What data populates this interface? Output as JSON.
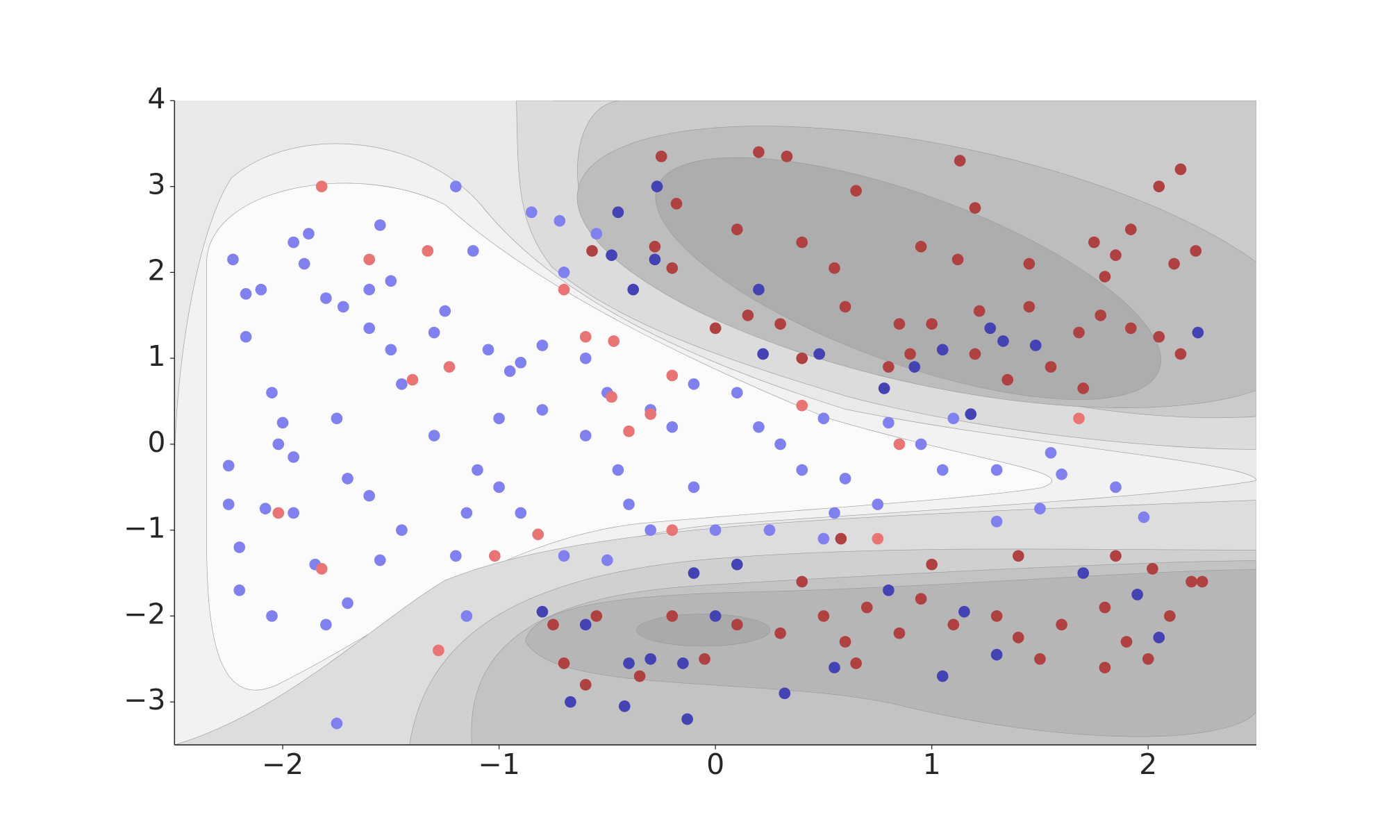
{
  "chart_data": {
    "type": "scatter",
    "xlim": [
      -2.5,
      2.5
    ],
    "ylim": [
      -3.5,
      4
    ],
    "xticks": [
      {
        "value": -2,
        "label": "−2"
      },
      {
        "value": -1,
        "label": "−1"
      },
      0,
      1,
      2
    ],
    "yticks": [
      {
        "value": -3,
        "label": "−3"
      },
      {
        "value": -2,
        "label": "−2"
      },
      {
        "value": -1,
        "label": "−1"
      },
      0,
      1,
      2,
      3,
      4
    ],
    "grid": false,
    "series": [
      {
        "color": "#8080ef",
        "x": [
          -2.23,
          -2.17,
          -2.1,
          -1.95,
          -1.88,
          -1.9,
          -1.8,
          -1.72,
          -1.55,
          -1.6,
          -1.5,
          -2.17,
          -2.05,
          -2.0,
          -2.02,
          -1.95,
          -2.25,
          -2.25,
          -2.08,
          -1.95,
          -2.2,
          -2.2,
          -2.05,
          -1.8,
          -1.75,
          -1.85,
          -1.7,
          -1.55,
          -1.45,
          -1.6,
          -1.7,
          -1.75,
          -1.6,
          -1.5,
          -1.45,
          -1.3,
          -1.25,
          -1.2,
          -1.12,
          -1.05,
          -0.95,
          -1.0,
          -1.1,
          -1.15,
          -1.2,
          -1.15,
          -1.0,
          -0.9,
          -0.8,
          -0.85,
          -0.72,
          -0.7,
          -0.6,
          -0.5,
          -0.6,
          -0.45,
          -0.4,
          -0.5,
          -0.7,
          -0.9,
          -0.3,
          -0.2,
          -0.1,
          0.1,
          0.2,
          0.3,
          0.4,
          0.5,
          0.6,
          0.55,
          0.75,
          0.8,
          0.95,
          1.1,
          1.05,
          1.3,
          1.5,
          1.55,
          1.6,
          1.85,
          1.98,
          1.3,
          -0.1,
          0.0,
          0.25,
          0.5,
          -0.3,
          -0.55,
          -0.8,
          -1.3
        ],
        "values": [
          2.15,
          1.75,
          1.8,
          2.35,
          2.45,
          2.1,
          1.7,
          1.6,
          2.55,
          1.8,
          1.9,
          1.25,
          0.6,
          0.25,
          0,
          -0.15,
          -0.25,
          -0.7,
          -0.75,
          -0.8,
          -1.2,
          -1.7,
          -2.0,
          -2.1,
          -3.25,
          -1.4,
          -1.85,
          -1.35,
          -1.0,
          -0.6,
          -0.4,
          0.3,
          1.35,
          1.1,
          0.7,
          1.3,
          1.55,
          3.0,
          2.25,
          1.1,
          0.85,
          0.3,
          -0.3,
          -0.8,
          -1.3,
          -2.0,
          -0.5,
          0.95,
          1.15,
          2.7,
          2.6,
          2.0,
          1.0,
          0.6,
          0.1,
          -0.3,
          -0.7,
          -1.35,
          -1.3,
          -0.8,
          0.4,
          0.2,
          0.7,
          0.6,
          0.2,
          0,
          -0.3,
          0.3,
          -0.4,
          -0.8,
          -0.7,
          0.25,
          0,
          0.3,
          -0.3,
          -0.3,
          -0.75,
          -0.1,
          -0.35,
          -0.5,
          -0.85,
          -0.9,
          -0.5,
          -1.0,
          -1.0,
          -1.1,
          -1.0,
          2.45,
          0.4,
          0.1
        ]
      },
      {
        "color": "#4343b3",
        "x": [
          -0.27,
          -0.45,
          -0.48,
          -0.28,
          -0.38,
          0.2,
          0.22,
          0.48,
          0.92,
          1.05,
          1.27,
          1.33,
          1.48,
          2.23,
          0.78,
          1.18,
          -0.8,
          -0.6,
          -0.4,
          -0.3,
          -0.15,
          0.0,
          -0.1,
          0.1,
          0.32,
          0.55,
          1.05,
          0.8,
          -0.13,
          -0.67,
          1.3,
          1.7,
          2.05,
          1.95,
          1.15,
          -0.42
        ],
        "values": [
          3.0,
          2.7,
          2.2,
          2.15,
          1.8,
          1.8,
          1.05,
          1.05,
          0.9,
          1.1,
          1.35,
          1.2,
          1.15,
          1.3,
          0.65,
          0.35,
          -1.95,
          -2.1,
          -2.55,
          -2.5,
          -2.55,
          -2.0,
          -1.5,
          -1.4,
          -2.9,
          -2.6,
          -2.7,
          -1.7,
          -3.2,
          -3.0,
          -2.45,
          -1.5,
          -2.25,
          -1.75,
          -1.95,
          -3.05
        ]
      },
      {
        "color": "#e87474",
        "x": [
          -1.82,
          -1.6,
          -1.33,
          -0.7,
          -0.6,
          -0.47,
          -1.4,
          -1.23,
          -0.48,
          -0.2,
          -0.3,
          0.4,
          0.85,
          -2.02,
          -1.82,
          -1.28,
          -1.02,
          -0.82,
          -0.2,
          1.68,
          0.75,
          -0.4
        ],
        "values": [
          3.0,
          2.15,
          2.25,
          1.8,
          1.25,
          1.2,
          0.75,
          0.9,
          0.55,
          0.8,
          0.35,
          0.45,
          0,
          -0.8,
          -1.45,
          -2.4,
          -1.3,
          -1.05,
          -1.0,
          0.3,
          -1.1,
          0.15
        ]
      },
      {
        "color": "#b04141",
        "x": [
          -0.25,
          0.2,
          0.33,
          1.13,
          2.15,
          2.05,
          0.65,
          -0.18,
          1.2,
          0.1,
          0.4,
          0.95,
          -0.57,
          -0.28,
          -0.2,
          0.55,
          1.12,
          1.45,
          1.75,
          1.8,
          1.85,
          1.92,
          2.12,
          2.22,
          0.15,
          0.3,
          0.6,
          0.85,
          1.0,
          1.22,
          1.45,
          1.68,
          1.78,
          1.92,
          2.05,
          2.15,
          1.2,
          1.35,
          1.55,
          1.7,
          0.9,
          0.8,
          0.0,
          0.4,
          -0.55,
          -0.75,
          -0.7,
          -0.6,
          -0.35,
          -0.2,
          0.1,
          0.3,
          0.5,
          0.6,
          0.7,
          0.85,
          0.95,
          1.1,
          1.3,
          1.4,
          1.6,
          1.8,
          1.9,
          2.0,
          2.1,
          2.2,
          2.25,
          1.8,
          1.5,
          0.65,
          -0.05,
          0.4,
          1.0,
          0.58,
          1.4,
          1.85,
          2.02
        ],
        "values": [
          3.35,
          3.4,
          3.35,
          3.3,
          3.2,
          3.0,
          2.95,
          2.8,
          2.75,
          2.5,
          2.35,
          2.3,
          2.25,
          2.3,
          2.05,
          2.05,
          2.15,
          2.1,
          2.35,
          1.95,
          2.2,
          2.5,
          2.1,
          2.25,
          1.5,
          1.4,
          1.6,
          1.4,
          1.4,
          1.55,
          1.6,
          1.3,
          1.5,
          1.35,
          1.25,
          1.05,
          1.05,
          0.75,
          0.9,
          0.65,
          1.05,
          0.9,
          1.35,
          1.0,
          -2.0,
          -2.1,
          -2.55,
          -2.8,
          -2.7,
          -2.0,
          -2.1,
          -2.2,
          -2.0,
          -2.3,
          -1.9,
          -2.2,
          -1.8,
          -2.1,
          -2.0,
          -2.25,
          -2.1,
          -1.9,
          -2.3,
          -2.5,
          -2.0,
          -1.6,
          -1.6,
          -2.6,
          -2.5,
          -2.55,
          -2.5,
          -1.6,
          -1.4,
          -1.1,
          -1.3,
          -1.3,
          -1.45
        ]
      }
    ]
  }
}
